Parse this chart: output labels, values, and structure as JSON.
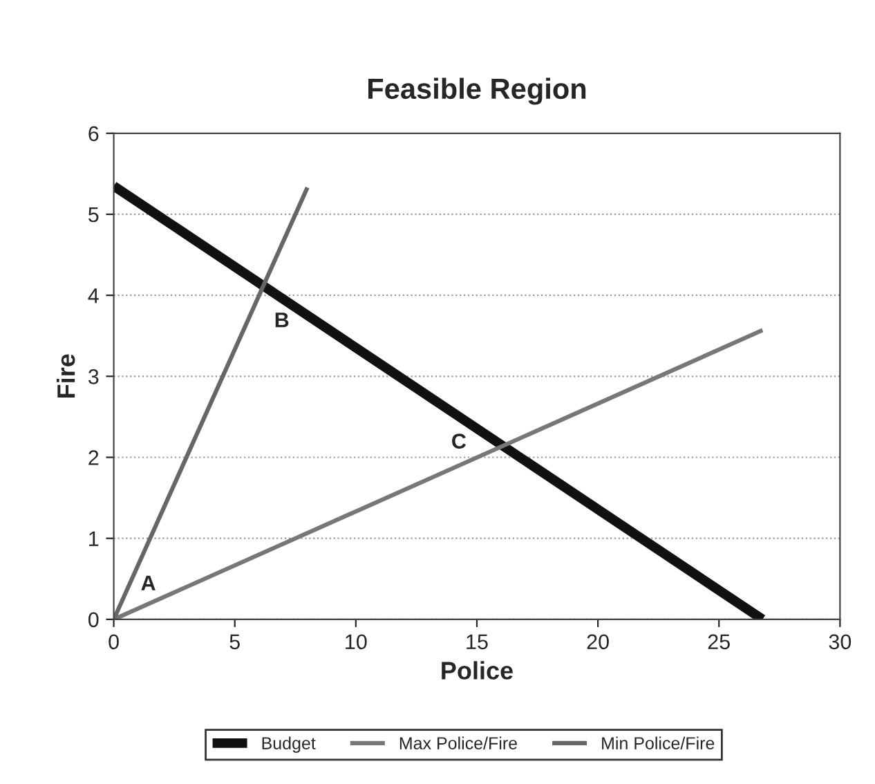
{
  "chart_data": {
    "type": "line",
    "title": "Feasible Region",
    "xlabel": "Police",
    "ylabel": "Fire",
    "series": [
      {
        "name": "Budget",
        "color": "#111111",
        "x": [
          0,
          26.8
        ],
        "values": [
          5.35,
          0
        ]
      },
      {
        "name": "Max Police/Fire",
        "color": "#777777",
        "x": [
          0,
          26.8
        ],
        "values": [
          0,
          3.57
        ]
      },
      {
        "name": "Min Police/Fire",
        "color": "#666666",
        "x": [
          0,
          8
        ],
        "values": [
          0,
          5.33
        ]
      }
    ],
    "annotations": [
      {
        "text": "A",
        "x": 0,
        "y": 0
      },
      {
        "text": "B",
        "x": 6.15,
        "y": 4.1
      },
      {
        "text": "C",
        "x": 16,
        "y": 2.13
      }
    ],
    "xlim": [
      0,
      30
    ],
    "xticks": [
      0,
      5,
      10,
      15,
      20,
      25,
      30
    ],
    "ylim": [
      0,
      6
    ],
    "yticks": [
      0,
      1,
      2,
      3,
      4,
      5,
      6
    ],
    "grid": "y",
    "legend": "bottom",
    "marker": "none",
    "line_style": "solid"
  }
}
